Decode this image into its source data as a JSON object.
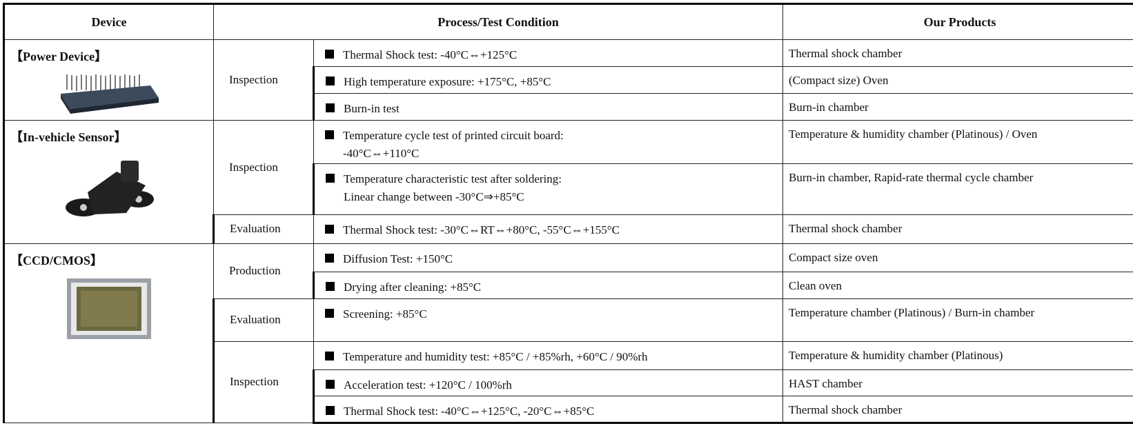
{
  "table": {
    "headers": [
      "Device",
      "Process/Test Condition",
      "Our Products"
    ],
    "groups": [
      {
        "device": "【Power Device】",
        "stages": [
          {
            "stage": "Inspection",
            "items": [
              {
                "condition": [
                  "Thermal Shock test: -40°C⇔+125°C"
                ],
                "product": "Thermal shock chamber"
              },
              {
                "condition": [
                  "High temperature exposure: +175°C, +85°C"
                ],
                "product": "(Compact size) Oven"
              },
              {
                "condition": [
                  "Burn-in test"
                ],
                "product": "Burn-in chamber"
              }
            ]
          }
        ]
      },
      {
        "device": "【In-vehicle Sensor】",
        "stages": [
          {
            "stage": "Inspection",
            "items": [
              {
                "condition": [
                  "Temperature cycle test of printed circuit board:",
                  "-40°C⇔+110°C"
                ],
                "product": "Temperature & humidity chamber (Platinous) / Oven"
              },
              {
                "condition": [
                  "Temperature characteristic test after soldering:",
                  "Linear change between -30°C⇒+85°C"
                ],
                "product": "Burn-in chamber, Rapid-rate thermal cycle chamber"
              }
            ]
          },
          {
            "stage": "Evaluation",
            "items": [
              {
                "condition": [
                  "Thermal Shock test: -30°C⇔RT⇔+80°C, -55°C⇔+155°C"
                ],
                "product": "Thermal shock chamber"
              }
            ]
          }
        ]
      },
      {
        "device": "【CCD/CMOS】",
        "stages": [
          {
            "stage": "Production",
            "items": [
              {
                "condition": [
                  "Diffusion Test: +150°C"
                ],
                "product": "Compact size oven"
              },
              {
                "condition": [
                  "Drying after cleaning: +85°C"
                ],
                "product": "Clean oven"
              }
            ]
          },
          {
            "stage": "Evaluation",
            "items": [
              {
                "condition": [
                  "Screening: +85°C"
                ],
                "product": "Temperature chamber (Platinous) / Burn-in chamber"
              }
            ]
          },
          {
            "stage": "Inspection",
            "items": [
              {
                "condition": [
                  "Temperature and humidity test: +85°C / +85%rh, +60°C / 90%rh"
                ],
                "product": "Temperature & humidity chamber (Platinous)"
              },
              {
                "condition": [
                  "Acceleration test: +120°C / 100%rh"
                ],
                "product": "HAST chamber"
              },
              {
                "condition": [
                  "Thermal Shock test: -40°C⇔+125°C, -20°C⇔+85°C"
                ],
                "product": "Thermal shock chamber"
              }
            ]
          }
        ]
      }
    ]
  }
}
